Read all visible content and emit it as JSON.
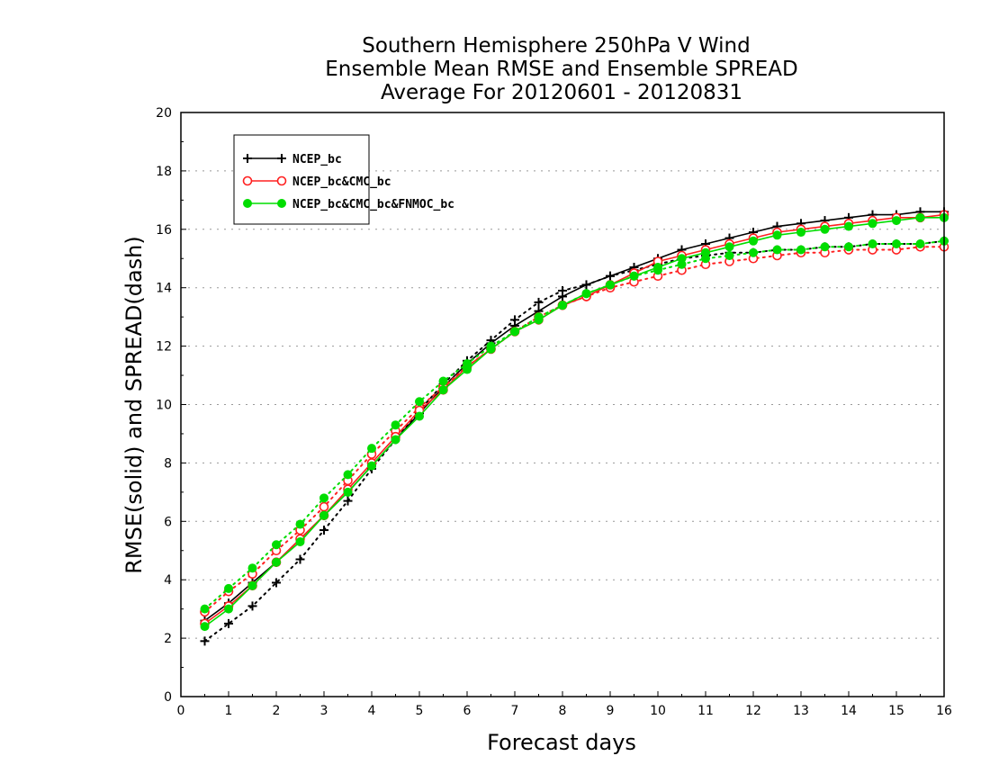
{
  "chart_data": {
    "type": "line",
    "title_lines": [
      "Southern Hemisphere 250hPa V Wind",
      "Ensemble Mean RMSE and Ensemble SPREAD",
      "Average For 20120601 - 20120831"
    ],
    "xlabel": "Forecast days",
    "ylabel": "RMSE(solid) and SPREAD(dash)",
    "xlim": [
      0,
      16
    ],
    "ylim": [
      0,
      20
    ],
    "xticks": [
      0,
      1,
      2,
      3,
      4,
      5,
      6,
      7,
      8,
      9,
      10,
      11,
      12,
      13,
      14,
      15,
      16
    ],
    "yticks": [
      0,
      2,
      4,
      6,
      8,
      10,
      12,
      14,
      16,
      18,
      20
    ],
    "grid": "horizontal dotted",
    "legend_position": "top-left",
    "x": [
      0.5,
      1,
      1.5,
      2,
      2.5,
      3,
      3.5,
      4,
      4.5,
      5,
      5.5,
      6,
      6.5,
      7,
      7.5,
      8,
      8.5,
      9,
      9.5,
      10,
      10.5,
      11,
      11.5,
      12,
      12.5,
      13,
      13.5,
      14,
      14.5,
      15,
      15.5,
      16
    ],
    "series": [
      {
        "name": "NCEP_bc",
        "color": "#000000",
        "marker": "plus",
        "rmse": [
          2.6,
          3.2,
          3.9,
          4.6,
          5.4,
          6.2,
          7.0,
          7.9,
          8.8,
          9.7,
          10.6,
          11.4,
          12.1,
          12.7,
          13.2,
          13.7,
          14.1,
          14.4,
          14.7,
          15.0,
          15.3,
          15.5,
          15.7,
          15.9,
          16.1,
          16.2,
          16.3,
          16.4,
          16.5,
          16.5,
          16.6,
          16.6
        ],
        "spread": [
          1.9,
          2.5,
          3.1,
          3.9,
          4.7,
          5.7,
          6.7,
          7.8,
          8.8,
          9.8,
          10.7,
          11.5,
          12.2,
          12.9,
          13.5,
          13.9,
          14.1,
          14.4,
          14.6,
          14.8,
          15.0,
          15.1,
          15.2,
          15.2,
          15.3,
          15.3,
          15.4,
          15.4,
          15.5,
          15.5,
          15.5,
          15.6
        ]
      },
      {
        "name": "NCEP_bc&CMC_bc",
        "color": "#ff2020",
        "marker": "open-circle",
        "rmse": [
          2.5,
          3.1,
          3.8,
          4.6,
          5.4,
          6.2,
          7.1,
          8.0,
          8.9,
          9.8,
          10.5,
          11.3,
          11.9,
          12.5,
          12.9,
          13.4,
          13.7,
          14.1,
          14.5,
          14.9,
          15.1,
          15.3,
          15.5,
          15.7,
          15.9,
          16.0,
          16.1,
          16.2,
          16.3,
          16.4,
          16.4,
          16.5
        ],
        "spread": [
          2.9,
          3.6,
          4.2,
          5.0,
          5.7,
          6.5,
          7.4,
          8.3,
          9.1,
          9.9,
          10.6,
          11.3,
          11.9,
          12.5,
          13.0,
          13.4,
          13.7,
          14.0,
          14.2,
          14.4,
          14.6,
          14.8,
          14.9,
          15.0,
          15.1,
          15.2,
          15.2,
          15.3,
          15.3,
          15.3,
          15.4,
          15.4
        ]
      },
      {
        "name": "NCEP_bc&CMC_bc&FNMOC_bc",
        "color": "#00dd00",
        "marker": "filled-circle",
        "rmse": [
          2.4,
          3.0,
          3.8,
          4.6,
          5.3,
          6.2,
          7.0,
          7.9,
          8.8,
          9.6,
          10.5,
          11.2,
          11.9,
          12.5,
          12.9,
          13.4,
          13.8,
          14.1,
          14.4,
          14.7,
          15.0,
          15.2,
          15.4,
          15.6,
          15.8,
          15.9,
          16.0,
          16.1,
          16.2,
          16.3,
          16.4,
          16.4
        ],
        "spread": [
          3.0,
          3.7,
          4.4,
          5.2,
          5.9,
          6.8,
          7.6,
          8.5,
          9.3,
          10.1,
          10.8,
          11.4,
          12.0,
          12.5,
          13.0,
          13.4,
          13.8,
          14.1,
          14.4,
          14.6,
          14.8,
          15.0,
          15.1,
          15.2,
          15.3,
          15.3,
          15.4,
          15.4,
          15.5,
          15.5,
          15.5,
          15.6
        ]
      }
    ]
  }
}
